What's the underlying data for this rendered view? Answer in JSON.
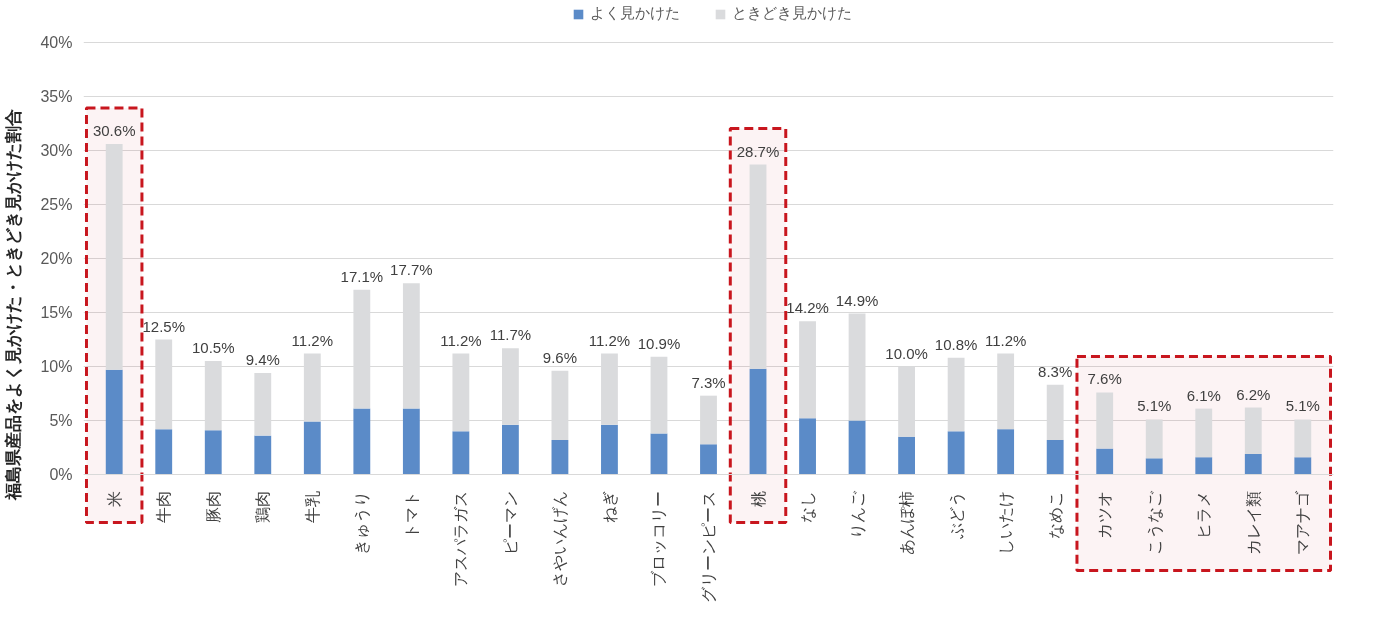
{
  "chart_data": {
    "type": "bar",
    "stacked": true,
    "ylabel": "福島県産品をよく見かけた・ときどき見かけた割合",
    "categories": [
      "米",
      "牛肉",
      "豚肉",
      "鶏肉",
      "牛乳",
      "きゅうり",
      "トマト",
      "アスパラガス",
      "ピーマン",
      "さやいんげん",
      "ねぎ",
      "ブロッコリー",
      "グリーンピース",
      "桃",
      "なし",
      "りんご",
      "あんぽ柿",
      "ぶどう",
      "しいたけ",
      "なめこ",
      "カツオ",
      "こうなご",
      "ヒラメ",
      "カレイ類",
      "マアナゴ"
    ],
    "series": [
      {
        "name": "よく見かけた",
        "color": "#5b8bc8",
        "values": [
          9.7,
          4.2,
          4.1,
          3.6,
          4.9,
          6.1,
          6.1,
          4.0,
          4.6,
          3.2,
          4.6,
          3.8,
          2.8,
          9.8,
          5.2,
          5.0,
          3.5,
          4.0,
          4.2,
          3.2,
          2.4,
          1.5,
          1.6,
          1.9,
          1.6
        ]
      },
      {
        "name": "ときどき見かけた",
        "color": "#dadbdd",
        "values": [
          20.9,
          8.3,
          6.4,
          5.8,
          6.3,
          11.0,
          11.6,
          7.2,
          7.1,
          6.4,
          6.6,
          7.1,
          4.5,
          18.9,
          9.0,
          9.9,
          6.5,
          6.8,
          7.0,
          5.1,
          5.2,
          3.6,
          4.5,
          4.3,
          3.5
        ]
      }
    ],
    "totals": [
      "30.6%",
      "12.5%",
      "10.5%",
      "9.4%",
      "11.2%",
      "17.1%",
      "17.7%",
      "11.2%",
      "11.7%",
      "9.6%",
      "11.2%",
      "10.9%",
      "7.3%",
      "28.7%",
      "14.2%",
      "14.9%",
      "10.0%",
      "10.8%",
      "11.2%",
      "8.3%",
      "7.6%",
      "5.1%",
      "6.1%",
      "6.2%",
      "5.1%"
    ],
    "ylim": [
      0,
      40
    ],
    "yticks": [
      {
        "value": 0,
        "label": "0%"
      },
      {
        "value": 5,
        "label": "5%"
      },
      {
        "value": 10,
        "label": "10%"
      },
      {
        "value": 15,
        "label": "15%"
      },
      {
        "value": 20,
        "label": "20%"
      },
      {
        "value": 25,
        "label": "25%"
      },
      {
        "value": 30,
        "label": "30%"
      },
      {
        "value": 35,
        "label": "35%"
      },
      {
        "value": 40,
        "label": "40%"
      }
    ],
    "grid": "y",
    "legend": "top",
    "bands": [
      {
        "axis": "x",
        "from": "米",
        "to": "米",
        "color": "#c8161e"
      },
      {
        "axis": "x",
        "from": "桃",
        "to": "桃",
        "color": "#c8161e"
      },
      {
        "axis": "x",
        "from": "カツオ",
        "to": "マアナゴ",
        "color": "#c8161e"
      }
    ]
  }
}
